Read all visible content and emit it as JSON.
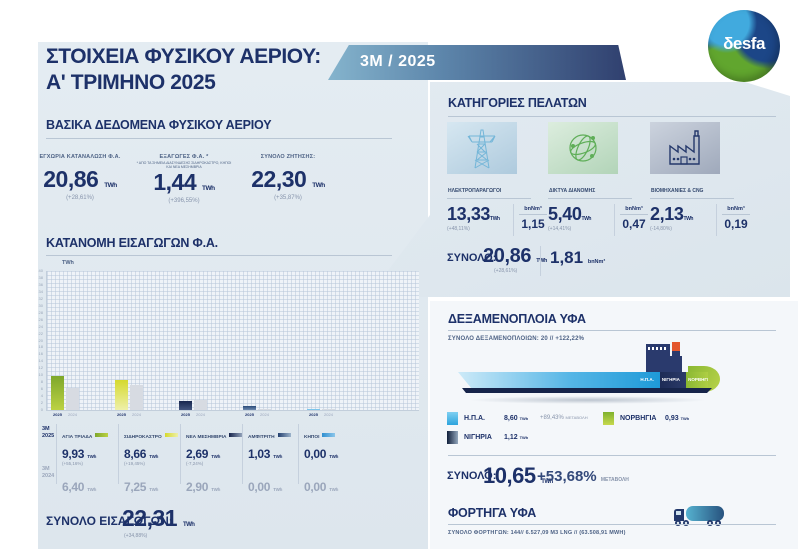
{
  "header": {
    "title_line1": "ΣΤΟΙΧΕΙΑ ΦΥΣΙΚΟΥ ΑΕΡΙΟΥ:",
    "title_line2": "Α' ΤΡΙΜΗΝΟ 2025",
    "period_badge": "3M / 2025",
    "logo_text": "δesfa"
  },
  "basic": {
    "title": "ΒΑΣΙΚΑ ΔΕΔΟΜΕΝΑ ΦΥΣΙΚΟΥ ΑΕΡΙΟΥ",
    "stats": [
      {
        "label": "ΕΓΧΩΡΙΑ ΚΑΤΑΝΑΛΩΣΗ Φ.Α.",
        "value": "20,86",
        "unit": "TWh",
        "change": "(+28,61%)"
      },
      {
        "label": "ΕΞΑΓΩΓΕΣ Φ.Α. *",
        "footnote": "* ΑΠΟ ΤΑ ΣΗΜΕΙΑ ΔΙΑΣΥΝΔΕΣΗΣ ΣΙΔΗΡΟΚΑΣΤΡΟ, ΚΗΠΟΙ ΚΑΙ ΝΕΑ ΜΕΣΗΜΒΡΙΑ",
        "value": "1,44",
        "unit": "TWh",
        "change": "(+396,55%)"
      },
      {
        "label": "ΣΥΝΟΛΟ ΖΗΤΗΣΗΣ:",
        "value": "22,30",
        "unit": "TWh",
        "change": "(+35,87%)"
      }
    ]
  },
  "imports": {
    "title": "ΚΑΤΑΝΟΜΗ ΕΙΣΑΓΩΓΩΝ Φ.Α.",
    "axis_unit": "TWh",
    "row_2025": {
      "line1": "3M",
      "line2": "2025"
    },
    "row_2024": {
      "line1": "3M",
      "line2": "2024"
    },
    "entries": [
      {
        "name": "ΑΓΙΑ ΤΡΙΑΔΑ",
        "v2025": "9,93",
        "unit": "TWh",
        "change": "(+55,16%)",
        "v2024": "6,40"
      },
      {
        "name": "ΣΙΔΗΡΟΚΑΣΤΡΟ",
        "v2025": "8,66",
        "unit": "TWh",
        "change": "(+19,45%)",
        "v2024": "7,25"
      },
      {
        "name": "ΝΕΑ ΜΕΣΗΜΒΡΙΑ",
        "v2025": "2,69",
        "unit": "TWh",
        "change": "(-7,24%)",
        "v2024": "2,90"
      },
      {
        "name": "ΑΜΦΙΤΡΙΤΗ",
        "v2025": "1,03",
        "unit": "TWh",
        "change": "",
        "v2024": "0,00"
      },
      {
        "name": "ΚΗΠΟΙ",
        "v2025": "0,00",
        "unit": "TWh",
        "change": "",
        "v2024": "0,00"
      }
    ],
    "total_label": "ΣΥΝΟΛΟ ΕΙΣΑΓΩΓΩΝ:",
    "total_value": "22,31",
    "total_unit": "TWh",
    "total_change": "(+34,88%)"
  },
  "customers": {
    "title": "ΚΑΤΗΓΟΡΙΕΣ ΠΕΛΑΤΩΝ",
    "categories": [
      {
        "label": "ΗΛΕΚΤΡΟΠΑΡΑΓΩΓΟΙ",
        "icon": "pylon-icon",
        "value": "13,33",
        "unit": "TWh",
        "change": "(+48,11%)",
        "alt_unit": "bnNm³",
        "alt_value": "1,15"
      },
      {
        "label": "ΔΙΚΤΥΑ ΔΙΑΝΟΜΗΣ",
        "icon": "globe-icon",
        "value": "5,40",
        "unit": "TWh",
        "change": "(+14,41%)",
        "alt_unit": "bnNm³",
        "alt_value": "0,47"
      },
      {
        "label": "ΒΙΟΜΗΧΑΝΙΕΣ & CNG",
        "icon": "factory-icon",
        "value": "2,13",
        "unit": "TWh",
        "change": "(-14,80%)",
        "alt_unit": "bnNm³",
        "alt_value": "0,19"
      }
    ],
    "total": {
      "label": "ΣΥΝΟΛΟ:",
      "value": "20,86",
      "unit": "TWh",
      "change": "(+28,61%)",
      "alt_value": "1,81",
      "alt_unit": "bnNm³"
    }
  },
  "vessels": {
    "title": "ΔΕΞΑΜΕΝΟΠΛΟΙΑ ΥΦΑ",
    "subtitle": "ΣΥΝΟΛΟ ΔΕΞΑΜΕΝΟΠΛΟΙΩΝ: 20   //   +122,22%",
    "legend": [
      {
        "name": "Η.Π.Α.",
        "value": "8,60",
        "unit": "TWh",
        "change": "+89,43%",
        "change_label": "ΜΕΤΑΒΟΛΗ"
      },
      {
        "name": "ΝΙΓΗΡΙΑ",
        "value": "1,12",
        "unit": "TWh",
        "change": "",
        "change_label": ""
      },
      {
        "name": "ΝΟΡΒΗΓΙΑ",
        "value": "0,93",
        "unit": "TWh",
        "change": "",
        "change_label": ""
      }
    ],
    "total": {
      "label": "ΣΥΝΟΛΟ:",
      "value": "10,65",
      "unit": "TWh",
      "change": "+53,68%",
      "change_label": "ΜΕΤΑΒΟΛΗ"
    }
  },
  "trucks": {
    "title": "ΦΟΡΤΗΓΑ ΥΦΑ",
    "summary": "ΣΥΝΟΛΟ ΦΟΡΤΗΓΩΝ: 144// 6.527,09 M3 LNG // (63.508,91 MWH)"
  },
  "chart_data": [
    {
      "type": "bar",
      "title": "ΚΑΤΑΝΟΜΗ ΕΙΣΑΓΩΓΩΝ Φ.Α.",
      "ylabel": "TWh",
      "ylim": [
        0,
        40
      ],
      "ytick_step": 2,
      "grid": true,
      "legend_position": "none",
      "categories": [
        "ΑΓΙΑ ΤΡΙΑΔΑ",
        "ΣΙΔΗΡΟΚΑΣΤΡΟ",
        "ΝΕΑ ΜΕΣΗΜΒΡΙΑ",
        "ΑΜΦΙΤΡΙΤΗ",
        "ΚΗΠΟΙ"
      ],
      "series": [
        {
          "name": "3M 2025",
          "values": [
            9.93,
            8.66,
            2.69,
            1.03,
            0.0
          ]
        },
        {
          "name": "3M 2024",
          "values": [
            6.4,
            7.25,
            2.9,
            0.0,
            0.0
          ]
        }
      ],
      "bar_group_labels": [
        "2025",
        "2024"
      ],
      "colors_2025": [
        [
          "#7ea72b",
          "#bcd243"
        ],
        [
          "#d5d92e",
          "#eef0aa"
        ],
        [
          "#18264e",
          "#44567f"
        ],
        [
          "#2a4a7a",
          "#6d89ad"
        ],
        [
          "#51b1e4",
          "#a6d9f2"
        ]
      ],
      "color_2024": "#d7dbe2",
      "label_color_2025": "#1d3169",
      "label_color_2024": "#9aa6bb"
    },
    {
      "type": "stacked-bar",
      "title": "ΔΕΞΑΜΕΝΟΠΛΟΙΑ ΥΦΑ (ship hull)",
      "unit": "TWh",
      "segments": [
        {
          "name": "Η.Π.Α.",
          "value": 8.6,
          "color": "#2da4dd"
        },
        {
          "name": "ΝΙΓΗΡΙΑ",
          "value": 1.12,
          "color": "#1d2b56"
        },
        {
          "name": "ΝΟΡΒΗΓΙΑ",
          "value": 0.93,
          "color": "#8ab832"
        }
      ],
      "total": 10.65
    }
  ]
}
